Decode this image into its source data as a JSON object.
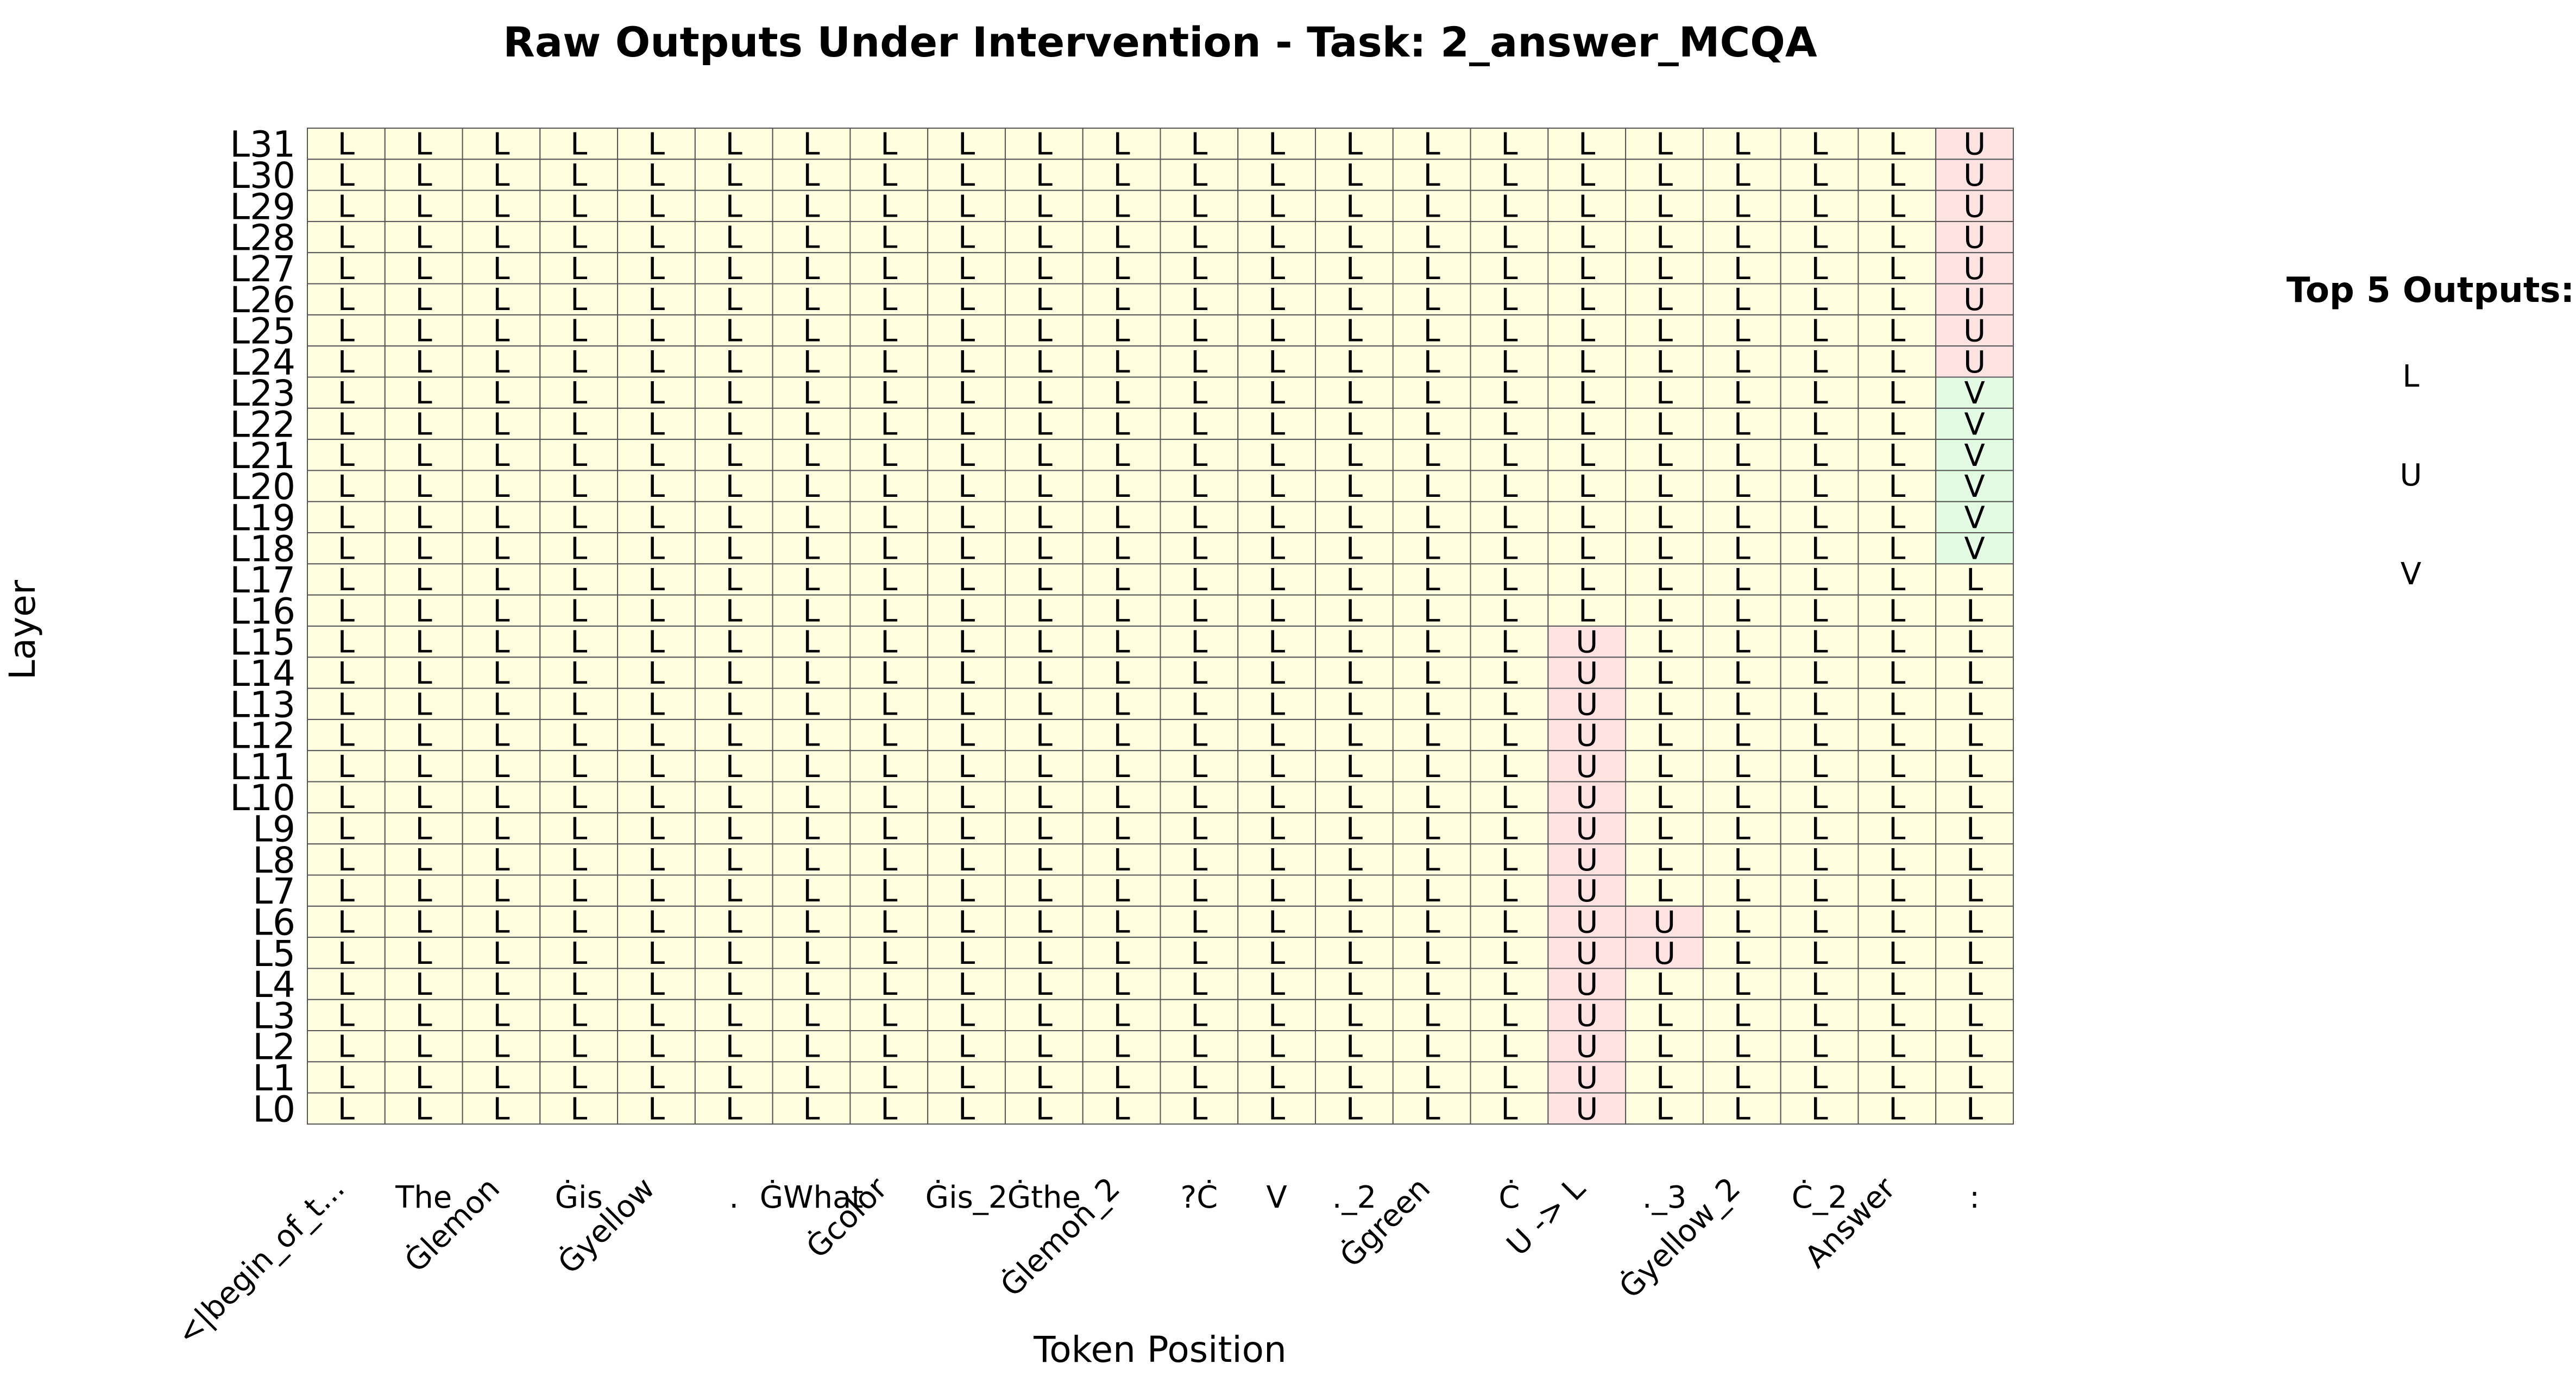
{
  "chart_data": {
    "type": "heatmap",
    "title": "Raw Outputs Under Intervention - Task: 2_answer_MCQA",
    "xlabel": "Token Position",
    "ylabel": "Layer",
    "x_tokens": [
      "<|begin_of_t...",
      "The",
      "Ġlemon",
      "Ġis",
      "Ġyellow",
      ".",
      "ĠWhat",
      "Ġcolor",
      "Ġis_2",
      "Ġthe",
      "Ġlemon_2",
      "?Ċ",
      "V",
      "._2",
      "Ġgreen",
      "Ċ",
      "U -> L",
      "._3",
      "Ġyellow_2",
      "Ċ_2",
      "Answer",
      ":"
    ],
    "y_layers": [
      "L31",
      "L30",
      "L29",
      "L28",
      "L27",
      "L26",
      "L25",
      "L24",
      "L23",
      "L22",
      "L21",
      "L20",
      "L19",
      "L18",
      "L17",
      "L16",
      "L15",
      "L14",
      "L13",
      "L12",
      "L11",
      "L10",
      "L9",
      "L8",
      "L7",
      "L6",
      "L5",
      "L4",
      "L3",
      "L2",
      "L1",
      "L0"
    ],
    "cells": [
      [
        "L",
        "L",
        "L",
        "L",
        "L",
        "L",
        "L",
        "L",
        "L",
        "L",
        "L",
        "L",
        "L",
        "L",
        "L",
        "L",
        "L",
        "L",
        "L",
        "L",
        "L",
        "U"
      ],
      [
        "L",
        "L",
        "L",
        "L",
        "L",
        "L",
        "L",
        "L",
        "L",
        "L",
        "L",
        "L",
        "L",
        "L",
        "L",
        "L",
        "L",
        "L",
        "L",
        "L",
        "L",
        "U"
      ],
      [
        "L",
        "L",
        "L",
        "L",
        "L",
        "L",
        "L",
        "L",
        "L",
        "L",
        "L",
        "L",
        "L",
        "L",
        "L",
        "L",
        "L",
        "L",
        "L",
        "L",
        "L",
        "U"
      ],
      [
        "L",
        "L",
        "L",
        "L",
        "L",
        "L",
        "L",
        "L",
        "L",
        "L",
        "L",
        "L",
        "L",
        "L",
        "L",
        "L",
        "L",
        "L",
        "L",
        "L",
        "L",
        "U"
      ],
      [
        "L",
        "L",
        "L",
        "L",
        "L",
        "L",
        "L",
        "L",
        "L",
        "L",
        "L",
        "L",
        "L",
        "L",
        "L",
        "L",
        "L",
        "L",
        "L",
        "L",
        "L",
        "U"
      ],
      [
        "L",
        "L",
        "L",
        "L",
        "L",
        "L",
        "L",
        "L",
        "L",
        "L",
        "L",
        "L",
        "L",
        "L",
        "L",
        "L",
        "L",
        "L",
        "L",
        "L",
        "L",
        "U"
      ],
      [
        "L",
        "L",
        "L",
        "L",
        "L",
        "L",
        "L",
        "L",
        "L",
        "L",
        "L",
        "L",
        "L",
        "L",
        "L",
        "L",
        "L",
        "L",
        "L",
        "L",
        "L",
        "U"
      ],
      [
        "L",
        "L",
        "L",
        "L",
        "L",
        "L",
        "L",
        "L",
        "L",
        "L",
        "L",
        "L",
        "L",
        "L",
        "L",
        "L",
        "L",
        "L",
        "L",
        "L",
        "L",
        "U"
      ],
      [
        "L",
        "L",
        "L",
        "L",
        "L",
        "L",
        "L",
        "L",
        "L",
        "L",
        "L",
        "L",
        "L",
        "L",
        "L",
        "L",
        "L",
        "L",
        "L",
        "L",
        "L",
        "V"
      ],
      [
        "L",
        "L",
        "L",
        "L",
        "L",
        "L",
        "L",
        "L",
        "L",
        "L",
        "L",
        "L",
        "L",
        "L",
        "L",
        "L",
        "L",
        "L",
        "L",
        "L",
        "L",
        "V"
      ],
      [
        "L",
        "L",
        "L",
        "L",
        "L",
        "L",
        "L",
        "L",
        "L",
        "L",
        "L",
        "L",
        "L",
        "L",
        "L",
        "L",
        "L",
        "L",
        "L",
        "L",
        "L",
        "V"
      ],
      [
        "L",
        "L",
        "L",
        "L",
        "L",
        "L",
        "L",
        "L",
        "L",
        "L",
        "L",
        "L",
        "L",
        "L",
        "L",
        "L",
        "L",
        "L",
        "L",
        "L",
        "L",
        "V"
      ],
      [
        "L",
        "L",
        "L",
        "L",
        "L",
        "L",
        "L",
        "L",
        "L",
        "L",
        "L",
        "L",
        "L",
        "L",
        "L",
        "L",
        "L",
        "L",
        "L",
        "L",
        "L",
        "V"
      ],
      [
        "L",
        "L",
        "L",
        "L",
        "L",
        "L",
        "L",
        "L",
        "L",
        "L",
        "L",
        "L",
        "L",
        "L",
        "L",
        "L",
        "L",
        "L",
        "L",
        "L",
        "L",
        "V"
      ],
      [
        "L",
        "L",
        "L",
        "L",
        "L",
        "L",
        "L",
        "L",
        "L",
        "L",
        "L",
        "L",
        "L",
        "L",
        "L",
        "L",
        "L",
        "L",
        "L",
        "L",
        "L",
        "L"
      ],
      [
        "L",
        "L",
        "L",
        "L",
        "L",
        "L",
        "L",
        "L",
        "L",
        "L",
        "L",
        "L",
        "L",
        "L",
        "L",
        "L",
        "L",
        "L",
        "L",
        "L",
        "L",
        "L"
      ],
      [
        "L",
        "L",
        "L",
        "L",
        "L",
        "L",
        "L",
        "L",
        "L",
        "L",
        "L",
        "L",
        "L",
        "L",
        "L",
        "L",
        "U",
        "L",
        "L",
        "L",
        "L",
        "L"
      ],
      [
        "L",
        "L",
        "L",
        "L",
        "L",
        "L",
        "L",
        "L",
        "L",
        "L",
        "L",
        "L",
        "L",
        "L",
        "L",
        "L",
        "U",
        "L",
        "L",
        "L",
        "L",
        "L"
      ],
      [
        "L",
        "L",
        "L",
        "L",
        "L",
        "L",
        "L",
        "L",
        "L",
        "L",
        "L",
        "L",
        "L",
        "L",
        "L",
        "L",
        "U",
        "L",
        "L",
        "L",
        "L",
        "L"
      ],
      [
        "L",
        "L",
        "L",
        "L",
        "L",
        "L",
        "L",
        "L",
        "L",
        "L",
        "L",
        "L",
        "L",
        "L",
        "L",
        "L",
        "U",
        "L",
        "L",
        "L",
        "L",
        "L"
      ],
      [
        "L",
        "L",
        "L",
        "L",
        "L",
        "L",
        "L",
        "L",
        "L",
        "L",
        "L",
        "L",
        "L",
        "L",
        "L",
        "L",
        "U",
        "L",
        "L",
        "L",
        "L",
        "L"
      ],
      [
        "L",
        "L",
        "L",
        "L",
        "L",
        "L",
        "L",
        "L",
        "L",
        "L",
        "L",
        "L",
        "L",
        "L",
        "L",
        "L",
        "U",
        "L",
        "L",
        "L",
        "L",
        "L"
      ],
      [
        "L",
        "L",
        "L",
        "L",
        "L",
        "L",
        "L",
        "L",
        "L",
        "L",
        "L",
        "L",
        "L",
        "L",
        "L",
        "L",
        "U",
        "L",
        "L",
        "L",
        "L",
        "L"
      ],
      [
        "L",
        "L",
        "L",
        "L",
        "L",
        "L",
        "L",
        "L",
        "L",
        "L",
        "L",
        "L",
        "L",
        "L",
        "L",
        "L",
        "U",
        "L",
        "L",
        "L",
        "L",
        "L"
      ],
      [
        "L",
        "L",
        "L",
        "L",
        "L",
        "L",
        "L",
        "L",
        "L",
        "L",
        "L",
        "L",
        "L",
        "L",
        "L",
        "L",
        "U",
        "L",
        "L",
        "L",
        "L",
        "L"
      ],
      [
        "L",
        "L",
        "L",
        "L",
        "L",
        "L",
        "L",
        "L",
        "L",
        "L",
        "L",
        "L",
        "L",
        "L",
        "L",
        "L",
        "U",
        "U",
        "L",
        "L",
        "L",
        "L"
      ],
      [
        "L",
        "L",
        "L",
        "L",
        "L",
        "L",
        "L",
        "L",
        "L",
        "L",
        "L",
        "L",
        "L",
        "L",
        "L",
        "L",
        "U",
        "U",
        "L",
        "L",
        "L",
        "L"
      ],
      [
        "L",
        "L",
        "L",
        "L",
        "L",
        "L",
        "L",
        "L",
        "L",
        "L",
        "L",
        "L",
        "L",
        "L",
        "L",
        "L",
        "U",
        "L",
        "L",
        "L",
        "L",
        "L"
      ],
      [
        "L",
        "L",
        "L",
        "L",
        "L",
        "L",
        "L",
        "L",
        "L",
        "L",
        "L",
        "L",
        "L",
        "L",
        "L",
        "L",
        "U",
        "L",
        "L",
        "L",
        "L",
        "L"
      ],
      [
        "L",
        "L",
        "L",
        "L",
        "L",
        "L",
        "L",
        "L",
        "L",
        "L",
        "L",
        "L",
        "L",
        "L",
        "L",
        "L",
        "U",
        "L",
        "L",
        "L",
        "L",
        "L"
      ],
      [
        "L",
        "L",
        "L",
        "L",
        "L",
        "L",
        "L",
        "L",
        "L",
        "L",
        "L",
        "L",
        "L",
        "L",
        "L",
        "L",
        "U",
        "L",
        "L",
        "L",
        "L",
        "L"
      ],
      [
        "L",
        "L",
        "L",
        "L",
        "L",
        "L",
        "L",
        "L",
        "L",
        "L",
        "L",
        "L",
        "L",
        "L",
        "L",
        "L",
        "U",
        "L",
        "L",
        "L",
        "L",
        "L"
      ]
    ],
    "colors": {
      "L": "#ffffe0",
      "U": "#ffe2e2",
      "V": "#e2fbe2"
    },
    "grid_line_color": "#555555",
    "legend": {
      "title": "Top 5 Outputs:",
      "items": [
        "L",
        "U",
        "V"
      ],
      "placement": "right"
    }
  }
}
